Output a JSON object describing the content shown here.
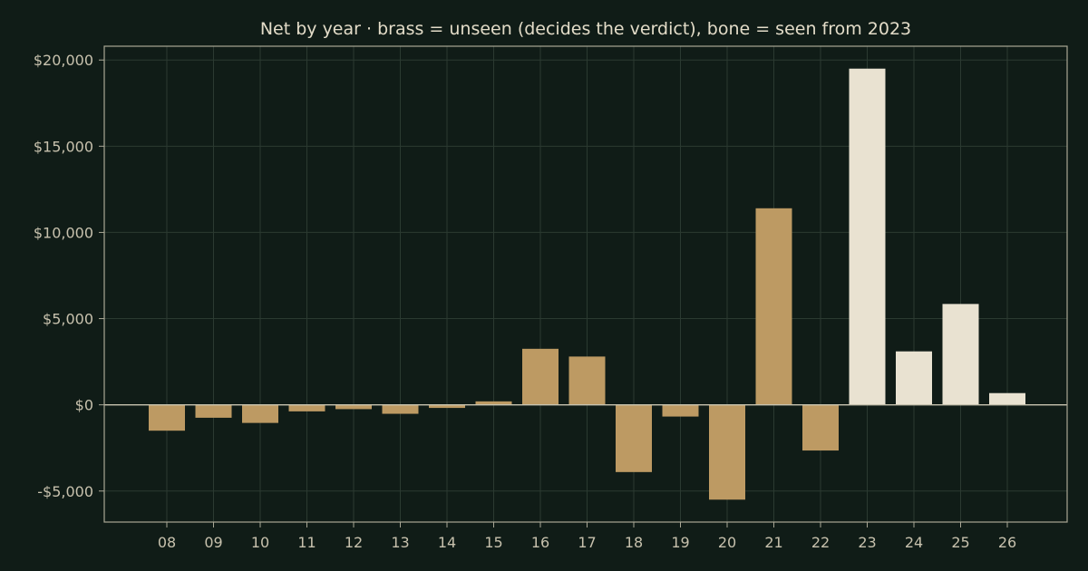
{
  "chart_data": {
    "type": "bar",
    "title": "Net by year  ·  brass = unseen (decides the verdict), bone = seen from 2023",
    "xlabel": "",
    "ylabel": "",
    "categories": [
      "08",
      "09",
      "10",
      "11",
      "12",
      "13",
      "14",
      "15",
      "16",
      "17",
      "18",
      "19",
      "20",
      "21",
      "22",
      "23",
      "24",
      "25",
      "26"
    ],
    "values": [
      -1500,
      -750,
      -1050,
      -380,
      -250,
      -520,
      -180,
      200,
      3250,
      2800,
      -3900,
      -680,
      -5500,
      11400,
      -2650,
      19500,
      3100,
      5850,
      680
    ],
    "unseen_categories": [
      "08",
      "09",
      "10",
      "11",
      "12",
      "13",
      "14",
      "15",
      "16",
      "17",
      "18",
      "19",
      "20",
      "21",
      "22"
    ],
    "seen_categories": [
      "23",
      "24",
      "25",
      "26"
    ],
    "ylim": [
      -6800,
      20800
    ],
    "yticks": [
      -5000,
      0,
      5000,
      10000,
      15000,
      20000
    ],
    "ytick_labels": [
      "-$5,000",
      "$0",
      "$5,000",
      "$10,000",
      "$15,000",
      "$20,000"
    ],
    "grid": true,
    "colors": {
      "background": "#101c17",
      "unseen": "#bd9a63",
      "seen": "#e9e2d1",
      "grid": "#2b3a31",
      "axis": "#a9a795",
      "text": "#c7c1ad",
      "title": "#e3dcc8"
    }
  }
}
